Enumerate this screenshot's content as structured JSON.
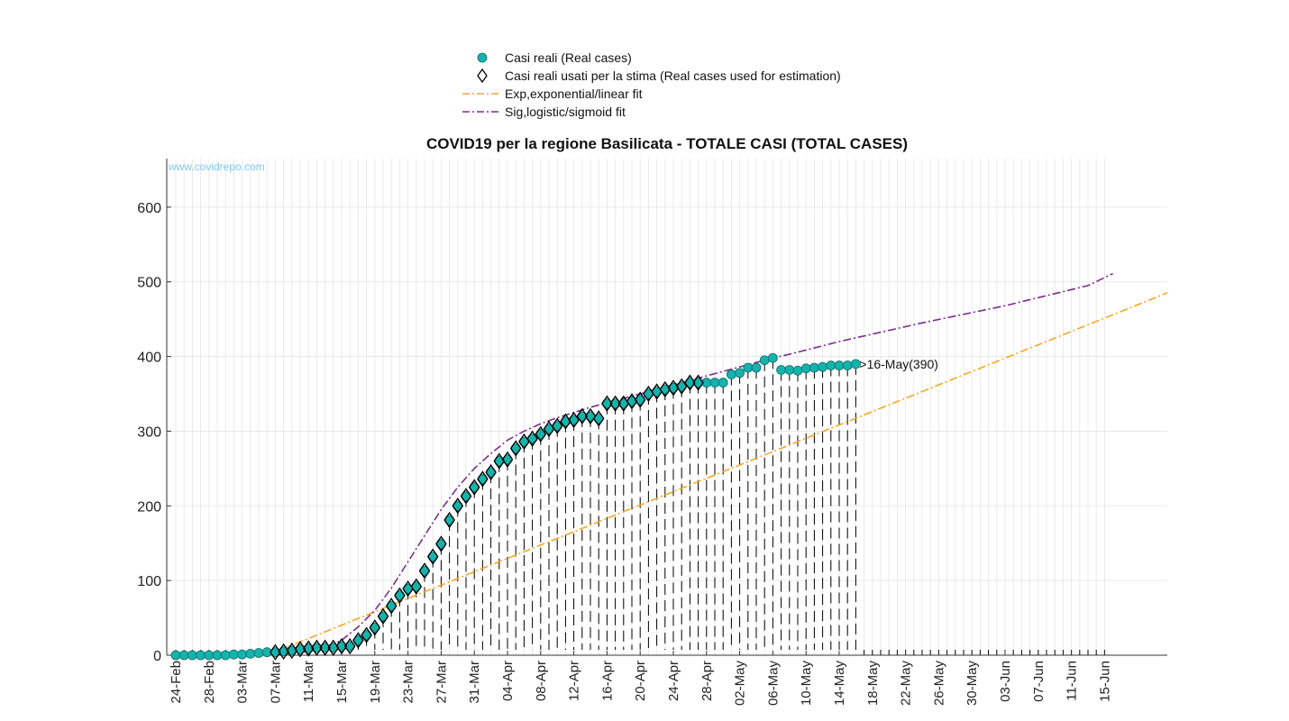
{
  "chart_data": {
    "type": "scatter",
    "title": "COVID19 per la regione Basilicata - TOTALE CASI (TOTAL CASES)",
    "watermark": "www.covidrepo.com",
    "xlabel": "",
    "ylabel": "",
    "ylim": [
      0,
      665
    ],
    "yticks": [
      0,
      100,
      200,
      300,
      400,
      500,
      600
    ],
    "x_start_date": "2020-02-24",
    "x_tick_labels": [
      "24-Feb",
      "28-Feb",
      "03-Mar",
      "07-Mar",
      "11-Mar",
      "15-Mar",
      "19-Mar",
      "23-Mar",
      "27-Mar",
      "31-Mar",
      "04-Apr",
      "08-Apr",
      "12-Apr",
      "16-Apr",
      "20-Apr",
      "24-Apr",
      "28-Apr",
      "02-May",
      "06-May",
      "10-May",
      "14-May",
      "18-May",
      "22-May",
      "26-May",
      "30-May",
      "03-Jun",
      "07-Jun",
      "11-Jun",
      "15-Jun"
    ],
    "grid": true,
    "legend_position": "top",
    "legend": [
      {
        "label": "Casi reali (Real cases)",
        "marker": "circle",
        "color": "#16b3ad"
      },
      {
        "label": "Casi reali usati per la stima (Real cases used for estimation)",
        "marker": "diamond",
        "color": "#000000"
      },
      {
        "label": "Exp,exponential/linear fit",
        "style": "dash-dot",
        "color": "#f5a623"
      },
      {
        "label": "Sig,logistic/sigmoid fit",
        "style": "dash-dot",
        "color": "#7b2d8e"
      }
    ],
    "series": [
      {
        "name": "Casi reali (Real cases)",
        "dates": [
          "24-Feb",
          "25-Feb",
          "26-Feb",
          "27-Feb",
          "28-Feb",
          "29-Feb",
          "01-Mar",
          "02-Mar",
          "03-Mar",
          "04-Mar",
          "05-Mar",
          "06-Mar",
          "07-Mar",
          "08-Mar",
          "09-Mar",
          "10-Mar",
          "11-Mar",
          "12-Mar",
          "13-Mar",
          "14-Mar",
          "15-Mar",
          "16-Mar",
          "17-Mar",
          "18-Mar",
          "19-Mar",
          "20-Mar",
          "21-Mar",
          "22-Mar",
          "23-Mar",
          "24-Mar",
          "25-Mar",
          "26-Mar",
          "27-Mar",
          "28-Mar",
          "29-Mar",
          "30-Mar",
          "31-Mar",
          "01-Apr",
          "02-Apr",
          "03-Apr",
          "04-Apr",
          "05-Apr",
          "06-Apr",
          "07-Apr",
          "08-Apr",
          "09-Apr",
          "10-Apr",
          "11-Apr",
          "12-Apr",
          "13-Apr",
          "14-Apr",
          "15-Apr",
          "16-Apr",
          "17-Apr",
          "18-Apr",
          "19-Apr",
          "20-Apr",
          "21-Apr",
          "22-Apr",
          "23-Apr",
          "24-Apr",
          "25-Apr",
          "26-Apr",
          "27-Apr",
          "28-Apr",
          "29-Apr",
          "30-Apr",
          "01-May",
          "02-May",
          "03-May",
          "04-May",
          "05-May",
          "06-May",
          "07-May",
          "08-May",
          "09-May",
          "10-May",
          "11-May",
          "12-May",
          "13-May",
          "14-May",
          "15-May",
          "16-May"
        ],
        "values": [
          0,
          0,
          0,
          0,
          0,
          0,
          0,
          1,
          1,
          2,
          3,
          4,
          4,
          5,
          6,
          8,
          9,
          10,
          10,
          10,
          12,
          12,
          20,
          27,
          37,
          52,
          66,
          80,
          89,
          92,
          113,
          132,
          149,
          181,
          200,
          213,
          225,
          236,
          245,
          260,
          262,
          277,
          286,
          290,
          296,
          303,
          307,
          313,
          315,
          320,
          320,
          317,
          337,
          337,
          337,
          340,
          342,
          350,
          353,
          356,
          358,
          360,
          365,
          365,
          365,
          365,
          365,
          376,
          378,
          385,
          385,
          395,
          398,
          382,
          382,
          381,
          384,
          385,
          386,
          388,
          388,
          388,
          390
        ]
      },
      {
        "name": "Casi reali usati per la stima (Real cases used for estimation)",
        "start_index": 12,
        "end_index": 63
      },
      {
        "name": "Exp,exponential/linear fit",
        "x_days": [
          11,
          160
        ],
        "values": [
          0,
          666
        ]
      },
      {
        "name": "Sig,logistic/sigmoid fit",
        "x_days": [
          11,
          16,
          18,
          20,
          22,
          24,
          26,
          28,
          30,
          32,
          34,
          36,
          38,
          40,
          42,
          44,
          46,
          48,
          50,
          52,
          54,
          56,
          58,
          60,
          62,
          64,
          66,
          68,
          70,
          72,
          74,
          80,
          90,
          100,
          110,
          113
        ],
        "values": [
          0,
          5,
          10,
          20,
          38,
          60,
          90,
          125,
          160,
          195,
          225,
          250,
          270,
          288,
          300,
          310,
          318,
          325,
          332,
          338,
          344,
          350,
          356,
          362,
          368,
          374,
          380,
          386,
          392,
          398,
          403,
          420,
          445,
          468,
          495,
          511
        ]
      }
    ],
    "annotation": {
      "date_index": 82,
      "text": ">16-May(390)"
    }
  }
}
